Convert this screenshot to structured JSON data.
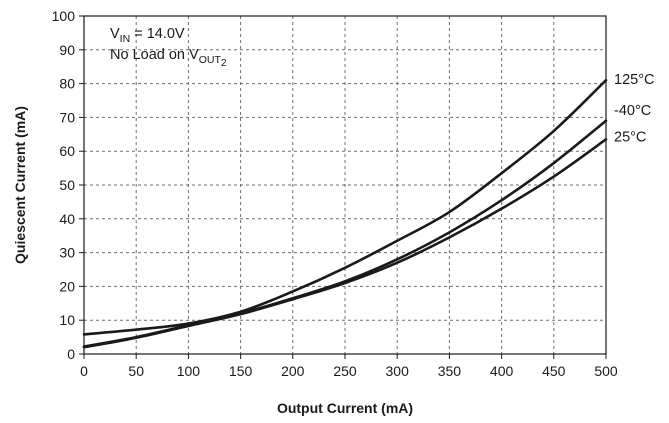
{
  "chart_data": {
    "type": "line",
    "title": "",
    "xlabel": "Output Current (mA)",
    "ylabel": "Quiescent Current (mA)",
    "xlim": [
      0,
      500
    ],
    "ylim": [
      0,
      100
    ],
    "xticks": [
      0,
      50,
      100,
      150,
      200,
      250,
      300,
      350,
      400,
      450,
      500
    ],
    "yticks": [
      0,
      10,
      20,
      30,
      40,
      50,
      60,
      70,
      80,
      90,
      100
    ],
    "grid": true,
    "annotations": {
      "vin_prefix": "V",
      "vin_sub": "IN",
      "vin_rest": " = 14.0V",
      "load_prefix": "No Load on V",
      "load_sub": "OUT",
      "load_sub2": "2"
    },
    "series": [
      {
        "name": "125°C",
        "x": [
          0,
          50,
          100,
          150,
          200,
          250,
          300,
          350,
          400,
          450,
          500
        ],
        "y": [
          5.8,
          7.2,
          9.0,
          12.5,
          18.5,
          25.5,
          33.5,
          42.0,
          53.5,
          66.0,
          81.0
        ]
      },
      {
        "name": "-40°C",
        "x": [
          0,
          50,
          100,
          150,
          200,
          250,
          300,
          350,
          400,
          450,
          500
        ],
        "y": [
          2.2,
          5.0,
          8.5,
          12.0,
          16.5,
          21.5,
          28.0,
          36.0,
          45.5,
          56.5,
          69.0
        ]
      },
      {
        "name": "25°C",
        "x": [
          0,
          50,
          100,
          150,
          200,
          250,
          300,
          350,
          400,
          450,
          500
        ],
        "y": [
          2.0,
          4.8,
          8.3,
          11.8,
          16.2,
          21.0,
          27.0,
          34.5,
          43.0,
          52.5,
          63.5
        ]
      }
    ]
  }
}
